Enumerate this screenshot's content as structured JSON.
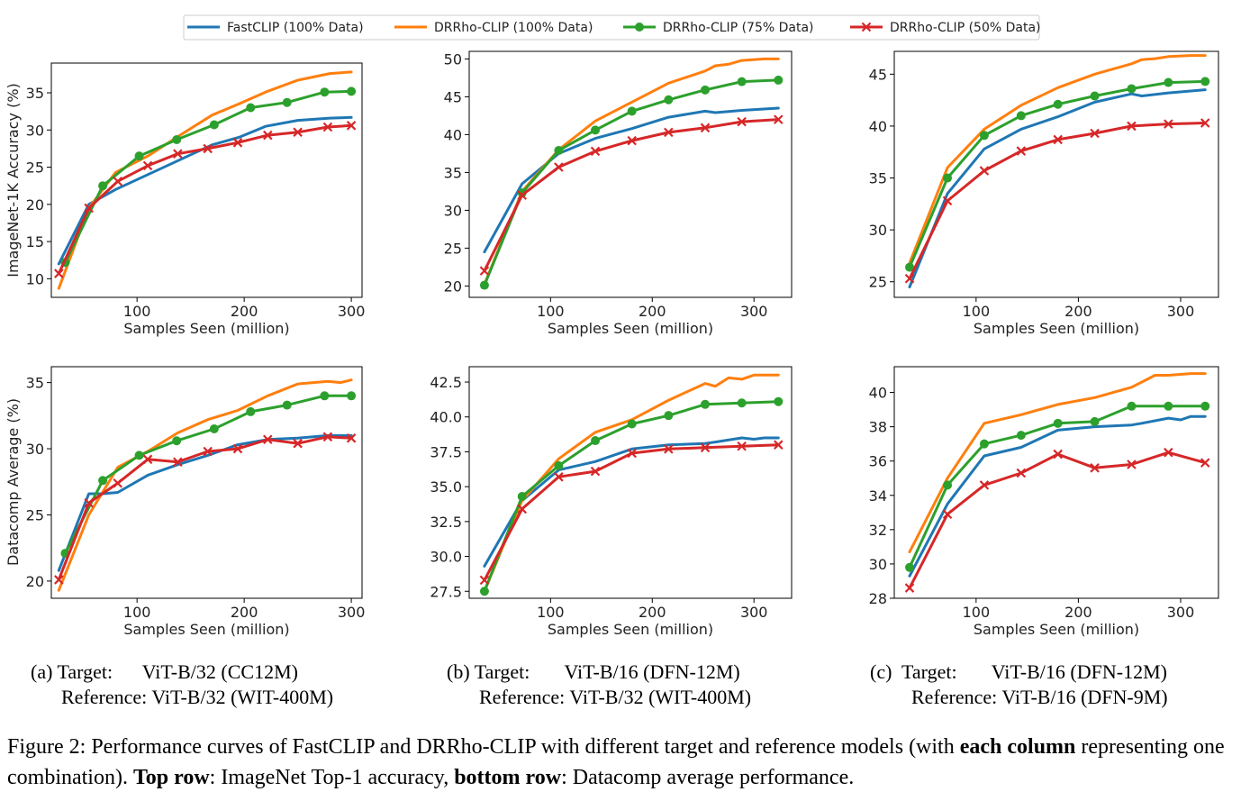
{
  "legend": [
    {
      "label": "FastCLIP (100% Data)",
      "color": "#1f77b4",
      "marker": "none"
    },
    {
      "label": "DRRho-CLIP (100% Data)",
      "color": "#ff7f0e",
      "marker": "none"
    },
    {
      "label": "DRRho-CLIP (75% Data)",
      "color": "#2ca02c",
      "marker": "circle"
    },
    {
      "label": "DRRho-CLIP (50% Data)",
      "color": "#d62728",
      "marker": "x"
    }
  ],
  "chart_data": [
    {
      "type": "line",
      "xlabel": "Samples Seen (million)",
      "ylabel": "ImageNet-1K Accuracy (%)",
      "xlim": [
        20,
        310
      ],
      "ylim": [
        7.5,
        39
      ],
      "xticks": [
        100,
        200,
        300
      ],
      "yticks": [
        10,
        15,
        20,
        25,
        30,
        35
      ],
      "series": [
        {
          "name": "FastCLIP (100% Data)",
          "x": [
            27,
            55,
            80,
            110,
            140,
            170,
            195,
            220,
            250,
            280,
            300
          ],
          "y": [
            12,
            20,
            22,
            24,
            26,
            28,
            29,
            30.5,
            31.3,
            31.6,
            31.7
          ]
        },
        {
          "name": "DRRho-CLIP (100% Data)",
          "x": [
            27,
            55,
            80,
            110,
            140,
            170,
            195,
            220,
            250,
            280,
            300
          ],
          "y": [
            8.7,
            19.5,
            24.3,
            26.5,
            29.3,
            32.0,
            33.5,
            35.1,
            36.7,
            37.6,
            37.8
          ]
        },
        {
          "name": "DRRho-CLIP (75% Data)",
          "x": [
            33,
            68,
            102,
            137,
            172,
            206,
            240,
            275,
            300
          ],
          "y": [
            12.2,
            22.5,
            26.5,
            28.7,
            30.7,
            33.0,
            33.7,
            35.1,
            35.2
          ]
        },
        {
          "name": "DRRho-CLIP (50% Data)",
          "x": [
            27,
            55,
            82,
            110,
            138,
            166,
            194,
            222,
            250,
            278,
            300
          ],
          "y": [
            10.7,
            19.5,
            23.1,
            25.2,
            26.8,
            27.5,
            28.3,
            29.3,
            29.7,
            30.4,
            30.6
          ]
        }
      ]
    },
    {
      "type": "line",
      "xlabel": "Samples Seen (million)",
      "ylabel": "",
      "xlim": [
        20,
        337
      ],
      "ylim": [
        18.5,
        51
      ],
      "xticks": [
        100,
        200,
        300
      ],
      "yticks": [
        20,
        25,
        30,
        35,
        40,
        45,
        50
      ],
      "series": [
        {
          "name": "FastCLIP (100% Data)",
          "x": [
            35,
            72,
            108,
            144,
            180,
            216,
            252,
            262,
            288,
            324
          ],
          "y": [
            24.5,
            33.5,
            37.5,
            39.5,
            40.8,
            42.3,
            43.1,
            42.9,
            43.2,
            43.5
          ]
        },
        {
          "name": "DRRho-CLIP (100% Data)",
          "x": [
            35,
            72,
            108,
            144,
            180,
            216,
            252,
            262,
            275,
            288,
            310,
            324
          ],
          "y": [
            20.2,
            32.5,
            38.0,
            41.8,
            44.3,
            46.8,
            48.4,
            49.1,
            49.3,
            49.8,
            50.0,
            50.0
          ]
        },
        {
          "name": "DRRho-CLIP (75% Data)",
          "x": [
            35,
            72,
            108,
            144,
            180,
            216,
            252,
            288,
            324
          ],
          "y": [
            20.1,
            32.3,
            37.9,
            40.6,
            43.1,
            44.6,
            45.9,
            47.0,
            47.2
          ]
        },
        {
          "name": "DRRho-CLIP (50% Data)",
          "x": [
            35,
            72,
            108,
            144,
            180,
            216,
            252,
            288,
            324
          ],
          "y": [
            22.0,
            32.0,
            35.7,
            37.8,
            39.2,
            40.3,
            40.9,
            41.7,
            42.0
          ]
        }
      ]
    },
    {
      "type": "line",
      "xlabel": "Samples Seen (million)",
      "ylabel": "",
      "xlim": [
        20,
        337
      ],
      "ylim": [
        23.5,
        47.2
      ],
      "xticks": [
        100,
        200,
        300
      ],
      "yticks": [
        25,
        30,
        35,
        40,
        45
      ],
      "series": [
        {
          "name": "FastCLIP (100% Data)",
          "x": [
            35,
            72,
            108,
            144,
            180,
            216,
            252,
            262,
            288,
            324
          ],
          "y": [
            24.5,
            33.5,
            37.8,
            39.7,
            40.9,
            42.3,
            43.1,
            42.9,
            43.2,
            43.5
          ]
        },
        {
          "name": "DRRho-CLIP (100% Data)",
          "x": [
            35,
            72,
            108,
            144,
            180,
            216,
            252,
            262,
            275,
            288,
            310,
            324
          ],
          "y": [
            26.8,
            36.0,
            39.7,
            42.0,
            43.7,
            45.0,
            46.0,
            46.4,
            46.5,
            46.7,
            46.8,
            46.8
          ]
        },
        {
          "name": "DRRho-CLIP (75% Data)",
          "x": [
            35,
            72,
            108,
            144,
            180,
            216,
            252,
            288,
            324
          ],
          "y": [
            26.4,
            35.0,
            39.1,
            41.0,
            42.1,
            42.9,
            43.6,
            44.2,
            44.3
          ]
        },
        {
          "name": "DRRho-CLIP (50% Data)",
          "x": [
            35,
            72,
            108,
            144,
            180,
            216,
            252,
            288,
            324
          ],
          "y": [
            25.3,
            32.8,
            35.7,
            37.6,
            38.7,
            39.3,
            40.0,
            40.2,
            40.3
          ]
        }
      ]
    },
    {
      "type": "line",
      "xlabel": "Samples Seen (million)",
      "ylabel": "Datacomp Average (%)",
      "xlim": [
        20,
        310
      ],
      "ylim": [
        18.7,
        36.2
      ],
      "xticks": [
        100,
        200,
        300
      ],
      "yticks": [
        20,
        25,
        30,
        35
      ],
      "series": [
        {
          "name": "FastCLIP (100% Data)",
          "x": [
            27,
            55,
            68,
            82,
            110,
            138,
            166,
            194,
            222,
            250,
            278,
            300
          ],
          "y": [
            20.8,
            26.6,
            26.6,
            26.7,
            28.0,
            28.8,
            29.5,
            30.3,
            30.7,
            30.8,
            31.0,
            31.0
          ]
        },
        {
          "name": "DRRho-CLIP (100% Data)",
          "x": [
            27,
            55,
            82,
            110,
            138,
            166,
            194,
            222,
            250,
            278,
            290,
            300
          ],
          "y": [
            19.3,
            25.0,
            28.6,
            29.8,
            31.2,
            32.2,
            32.9,
            34.0,
            34.9,
            35.1,
            35.0,
            35.2
          ]
        },
        {
          "name": "DRRho-CLIP (75% Data)",
          "x": [
            33,
            68,
            102,
            137,
            172,
            206,
            240,
            275,
            300
          ],
          "y": [
            22.1,
            27.6,
            29.5,
            30.6,
            31.5,
            32.8,
            33.3,
            34.0,
            34.0
          ]
        },
        {
          "name": "DRRho-CLIP (50% Data)",
          "x": [
            27,
            55,
            82,
            110,
            138,
            166,
            194,
            222,
            250,
            278,
            300
          ],
          "y": [
            20.1,
            25.9,
            27.4,
            29.2,
            29.0,
            29.8,
            30.0,
            30.7,
            30.4,
            30.9,
            30.8
          ]
        }
      ]
    },
    {
      "type": "line",
      "xlabel": "Samples Seen (million)",
      "ylabel": "",
      "xlim": [
        20,
        337
      ],
      "ylim": [
        27.0,
        43.6
      ],
      "xticks": [
        100,
        200,
        300
      ],
      "yticks": [
        27.5,
        30.0,
        32.5,
        35.0,
        37.5,
        40.0,
        42.5
      ],
      "series": [
        {
          "name": "FastCLIP (100% Data)",
          "x": [
            35,
            72,
            108,
            144,
            180,
            216,
            252,
            262,
            288,
            300,
            310,
            324
          ],
          "y": [
            29.3,
            34.0,
            36.2,
            36.8,
            37.7,
            38.0,
            38.1,
            38.2,
            38.5,
            38.4,
            38.5,
            38.5
          ]
        },
        {
          "name": "DRRho-CLIP (100% Data)",
          "x": [
            35,
            72,
            108,
            144,
            180,
            216,
            252,
            262,
            275,
            288,
            300,
            310,
            324
          ],
          "y": [
            27.5,
            34.0,
            37.0,
            38.9,
            39.8,
            41.2,
            42.4,
            42.2,
            42.8,
            42.7,
            43.0,
            43.0,
            43.0
          ]
        },
        {
          "name": "DRRho-CLIP (75% Data)",
          "x": [
            35,
            72,
            108,
            144,
            180,
            216,
            252,
            288,
            324
          ],
          "y": [
            27.5,
            34.3,
            36.5,
            38.3,
            39.5,
            40.1,
            40.9,
            41.0,
            41.1
          ]
        },
        {
          "name": "DRRho-CLIP (50% Data)",
          "x": [
            35,
            72,
            108,
            144,
            180,
            216,
            252,
            288,
            324
          ],
          "y": [
            28.3,
            33.4,
            35.7,
            36.1,
            37.4,
            37.7,
            37.8,
            37.9,
            38.0
          ]
        }
      ]
    },
    {
      "type": "line",
      "xlabel": "Samples Seen (million)",
      "ylabel": "",
      "xlim": [
        20,
        337
      ],
      "ylim": [
        28.0,
        41.5
      ],
      "xticks": [
        100,
        200,
        300
      ],
      "yticks": [
        28,
        30,
        32,
        34,
        36,
        38,
        40
      ],
      "series": [
        {
          "name": "FastCLIP (100% Data)",
          "x": [
            35,
            72,
            108,
            144,
            180,
            216,
            252,
            262,
            288,
            300,
            310,
            324
          ],
          "y": [
            29.3,
            33.5,
            36.3,
            36.8,
            37.8,
            38.0,
            38.1,
            38.2,
            38.5,
            38.4,
            38.6,
            38.6
          ]
        },
        {
          "name": "DRRho-CLIP (100% Data)",
          "x": [
            35,
            72,
            108,
            144,
            180,
            216,
            252,
            275,
            288,
            310,
            324
          ],
          "y": [
            30.7,
            35.0,
            38.2,
            38.7,
            39.3,
            39.7,
            40.3,
            41.0,
            41.0,
            41.1,
            41.1
          ]
        },
        {
          "name": "DRRho-CLIP (75% Data)",
          "x": [
            35,
            72,
            108,
            144,
            180,
            216,
            252,
            288,
            324
          ],
          "y": [
            29.8,
            34.6,
            37.0,
            37.5,
            38.2,
            38.3,
            39.2,
            39.2,
            39.2
          ]
        },
        {
          "name": "DRRho-CLIP (50% Data)",
          "x": [
            35,
            72,
            108,
            144,
            180,
            216,
            252,
            288,
            324
          ],
          "y": [
            28.6,
            32.9,
            34.6,
            35.3,
            36.4,
            35.6,
            35.8,
            36.5,
            35.9
          ]
        }
      ]
    }
  ],
  "subcaptions": [
    {
      "line1": "(a) Target:      ViT-B/32 (CC12M)",
      "line2": "Reference: ViT-B/32 (WIT-400M)"
    },
    {
      "line1": "(b) Target:       ViT-B/16 (DFN-12M)",
      "line2": "Reference: ViT-B/32 (WIT-400M)"
    },
    {
      "line1": "(c)  Target:       ViT-B/16 (DFN-12M)",
      "line2": "Reference: ViT-B/16 (DFN-9M)"
    }
  ],
  "caption": {
    "prefix": "Figure 2: Performance curves of FastCLIP and DRRho-CLIP with different target and reference models (with ",
    "bold1": "each column",
    "mid1": " representing one combination). ",
    "bold2": "Top row",
    "mid2": ": ImageNet Top-1 accuracy, ",
    "bold3": "bottom row",
    "suffix": ": Datacomp average performance."
  }
}
